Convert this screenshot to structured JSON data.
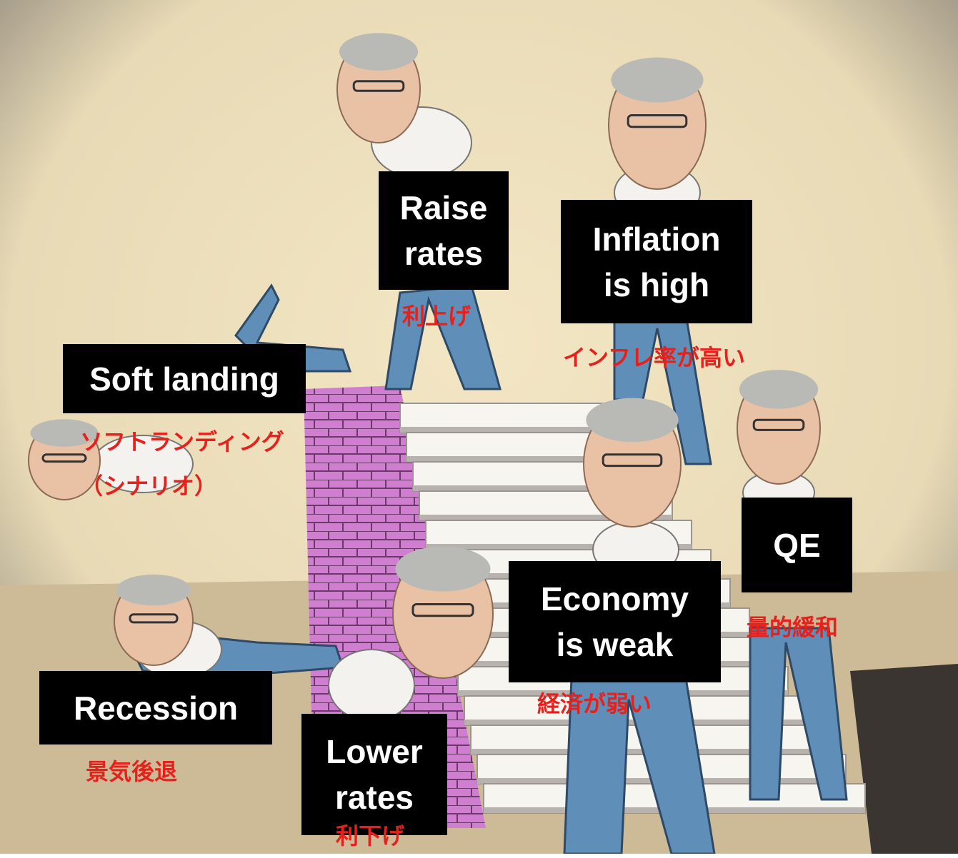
{
  "labels": [
    {
      "lines": [
        "Raise",
        "rates"
      ],
      "jp": [
        "利上げ"
      ]
    },
    {
      "lines": [
        "Inflation",
        "is high"
      ],
      "jp": [
        "インフレ率が高い"
      ]
    },
    {
      "lines": [
        "Soft landing"
      ],
      "jp": [
        "ソフトランディング",
        "（シナリオ）"
      ]
    },
    {
      "lines": [
        "QE"
      ],
      "jp": [
        "量的緩和"
      ]
    },
    {
      "lines": [
        "Economy",
        "is weak"
      ],
      "jp": [
        "経済が弱い"
      ]
    },
    {
      "lines": [
        "Recession"
      ],
      "jp": [
        "景気後退"
      ]
    },
    {
      "lines": [
        "Lower",
        "rates"
      ],
      "jp": [
        "利下げ"
      ]
    }
  ]
}
